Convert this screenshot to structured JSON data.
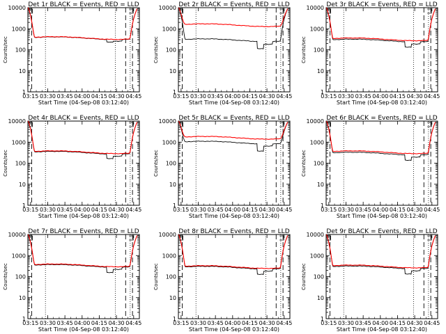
{
  "chart_data": {
    "common": {
      "type": "line",
      "xlabel": "Start Time (04-Sep-08 03:12:40)",
      "ylabel": "Counts/sec",
      "y_scale": "log",
      "ylim": [
        1,
        10000
      ],
      "xlim": [
        "03:12:40",
        "04:50:00"
      ],
      "x_ticks": [
        "03:15",
        "03:30",
        "03:45",
        "04:00",
        "04:15",
        "04:30",
        "04:45"
      ],
      "y_ticks": [
        "1",
        "10",
        "100",
        "1000",
        "10000"
      ],
      "dotted_vlines": [
        "03:28",
        "04:29",
        "04:42"
      ],
      "dashed_vlines": [
        "03:16",
        "04:38",
        "04:44"
      ],
      "series_colors": {
        "events": "#000000",
        "lld": "#ff0000"
      },
      "grid": false
    },
    "panels": [
      {
        "title": "Det 1r BLACK = Events, RED = LLD",
        "lld_level": 380,
        "events_level": 370,
        "dip": 0.75,
        "dip2": 0.85
      },
      {
        "title": "Det 2r BLACK = Events, RED = LLD",
        "lld_level": 1550,
        "events_level": 300,
        "dip": 0.45,
        "dip2": 0.75
      },
      {
        "title": "Det 3r BLACK = Events, RED = LLD",
        "lld_level": 330,
        "events_level": 290,
        "dip": 0.55,
        "dip2": 0.8
      },
      {
        "title": "Det 4r BLACK = Events, RED = LLD",
        "lld_level": 350,
        "events_level": 330,
        "dip": 0.6,
        "dip2": 0.8
      },
      {
        "title": "Det 5r BLACK = Events, RED = LLD",
        "lld_level": 1700,
        "events_level": 1000,
        "dip": 0.45,
        "dip2": 0.8
      },
      {
        "title": "Det 6r BLACK = Events, RED = LLD",
        "lld_level": 350,
        "events_level": 300,
        "dip": 0.55,
        "dip2": 0.8
      },
      {
        "title": "Det 7r BLACK = Events, RED = LLD",
        "lld_level": 360,
        "events_level": 340,
        "dip": 0.55,
        "dip2": 0.8
      },
      {
        "title": "Det 8r BLACK = Events, RED = LLD",
        "lld_level": 300,
        "events_level": 280,
        "dip": 0.55,
        "dip2": 0.8
      },
      {
        "title": "Det 9r BLACK = Events, RED = LLD",
        "lld_level": 320,
        "events_level": 290,
        "dip": 0.55,
        "dip2": 0.8
      }
    ]
  }
}
